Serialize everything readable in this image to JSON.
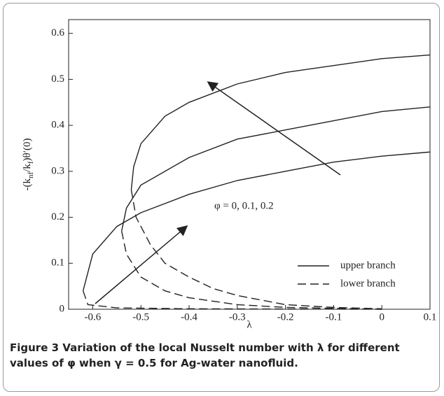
{
  "chart_data": {
    "type": "line",
    "xlabel": "λ",
    "ylabel_parts": [
      "-(k",
      "nf",
      "/k",
      "f",
      ")θ′(0)"
    ],
    "annotation": "φ = 0, 0.1, 0.2",
    "xlim": [
      -0.65,
      0.1
    ],
    "xticks": [
      -0.6,
      -0.5,
      -0.4,
      -0.3,
      -0.2,
      -0.1,
      0,
      0.1
    ],
    "ylim": [
      0,
      0.63
    ],
    "yticks": [
      0,
      0.1,
      0.2,
      0.3,
      0.4,
      0.5,
      0.6
    ],
    "color": "#222222",
    "legend": [
      {
        "name": "upper branch",
        "dashed": false
      },
      {
        "name": "lower branch",
        "dashed": true
      }
    ],
    "series": [
      {
        "name": "upper branch",
        "dashed": false,
        "x": [
          -0.62,
          -0.6,
          -0.55,
          -0.5,
          -0.4,
          -0.3,
          -0.2,
          -0.1,
          0,
          0.1
        ],
        "values": [
          0.04,
          0.12,
          0.18,
          0.21,
          0.25,
          0.28,
          0.3,
          0.32,
          0.333,
          0.342
        ]
      },
      {
        "name": "lower branch",
        "dashed": true,
        "x": [
          -0.62,
          -0.61,
          -0.55,
          -0.4,
          0
        ],
        "values": [
          0.04,
          0.01,
          0.003,
          0.001,
          0
        ]
      },
      {
        "name": "upper branch",
        "dashed": false,
        "x": [
          -0.54,
          -0.53,
          -0.5,
          -0.4,
          -0.3,
          -0.2,
          -0.1,
          0,
          0.1
        ],
        "values": [
          0.17,
          0.22,
          0.27,
          0.33,
          0.37,
          0.39,
          0.41,
          0.43,
          0.44
        ]
      },
      {
        "name": "lower branch",
        "dashed": true,
        "x": [
          -0.54,
          -0.53,
          -0.5,
          -0.45,
          -0.4,
          -0.3,
          -0.2,
          0
        ],
        "values": [
          0.17,
          0.12,
          0.07,
          0.04,
          0.025,
          0.01,
          0.004,
          0
        ]
      },
      {
        "name": "upper branch",
        "dashed": false,
        "x": [
          -0.52,
          -0.515,
          -0.5,
          -0.45,
          -0.4,
          -0.3,
          -0.2,
          -0.1,
          0,
          0.1
        ],
        "values": [
          0.26,
          0.31,
          0.36,
          0.42,
          0.45,
          0.49,
          0.515,
          0.53,
          0.545,
          0.553
        ]
      },
      {
        "name": "lower branch",
        "dashed": true,
        "x": [
          -0.52,
          -0.51,
          -0.48,
          -0.45,
          -0.4,
          -0.35,
          -0.3,
          -0.2,
          -0.1,
          0
        ],
        "values": [
          0.26,
          0.2,
          0.14,
          0.1,
          0.07,
          0.045,
          0.03,
          0.01,
          0.004,
          0.001
        ]
      }
    ]
  },
  "caption": {
    "label": "Figure 3",
    "text": "Variation of the local Nusselt number with λ for different values of φ when γ = 0.5 for Ag-water nanofluid."
  }
}
